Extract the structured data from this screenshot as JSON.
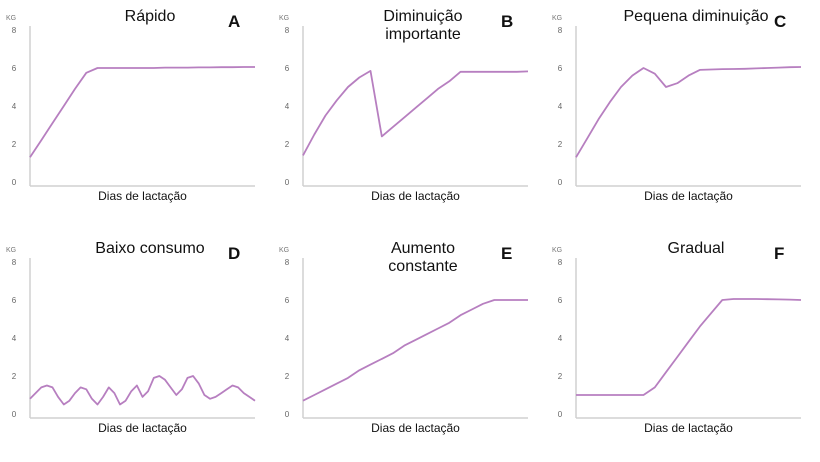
{
  "chart_data": [
    {
      "type": "line",
      "title": [
        "Rápido"
      ],
      "label": "A",
      "ylabel": "KG",
      "xlabel": "Dias de lactação",
      "ylim": [
        0,
        8
      ],
      "yticks": [
        0,
        2,
        4,
        6,
        8
      ],
      "color": "#b77fc0",
      "values": [
        1.3,
        2.2,
        3.1,
        4.0,
        4.9,
        5.75,
        6.0,
        6.0,
        6.0,
        6.0,
        6.0,
        6.0,
        6.02,
        6.02,
        6.02,
        6.03,
        6.03,
        6.04,
        6.04,
        6.05,
        6.05
      ]
    },
    {
      "type": "line",
      "title": [
        "Diminuição",
        "importante"
      ],
      "label": "B",
      "ylabel": "KG",
      "xlabel": "Dias de lactação",
      "ylim": [
        0,
        8
      ],
      "yticks": [
        0,
        2,
        4,
        6,
        8
      ],
      "color": "#b77fc0",
      "values": [
        1.4,
        2.5,
        3.5,
        4.3,
        5.0,
        5.5,
        5.85,
        2.4,
        2.9,
        3.4,
        3.9,
        4.4,
        4.9,
        5.3,
        5.8,
        5.8,
        5.8,
        5.8,
        5.8,
        5.8,
        5.82
      ]
    },
    {
      "type": "line",
      "title": [
        "Pequena diminuição"
      ],
      "label": "C",
      "ylabel": "KG",
      "xlabel": "Dias de lactação",
      "ylim": [
        0,
        8
      ],
      "yticks": [
        0,
        2,
        4,
        6,
        8
      ],
      "color": "#b77fc0",
      "values": [
        1.3,
        2.3,
        3.3,
        4.2,
        5.0,
        5.6,
        6.0,
        5.7,
        5.0,
        5.2,
        5.6,
        5.9,
        5.92,
        5.94,
        5.95,
        5.96,
        5.98,
        6.0,
        6.02,
        6.04,
        6.05
      ]
    },
    {
      "type": "line",
      "title": [
        "Baixo consumo"
      ],
      "label": "D",
      "ylabel": "KG",
      "xlabel": "Dias de lactação",
      "ylim": [
        0,
        8
      ],
      "yticks": [
        0,
        2,
        4,
        6,
        8
      ],
      "color": "#b77fc0",
      "values": [
        0.8,
        1.1,
        1.4,
        1.5,
        1.4,
        0.9,
        0.5,
        0.7,
        1.1,
        1.4,
        1.3,
        0.8,
        0.5,
        0.9,
        1.4,
        1.1,
        0.5,
        0.7,
        1.2,
        1.5,
        0.9,
        1.2,
        1.9,
        2.0,
        1.8,
        1.4,
        1.0,
        1.3,
        1.9,
        2.0,
        1.6,
        1.0,
        0.8,
        0.9,
        1.1,
        1.3,
        1.5,
        1.4,
        1.1,
        0.9,
        0.7
      ]
    },
    {
      "type": "line",
      "title": [
        "Aumento",
        "constante"
      ],
      "label": "E",
      "ylabel": "KG",
      "xlabel": "Dias de lactação",
      "ylim": [
        0,
        8
      ],
      "yticks": [
        0,
        2,
        4,
        6,
        8
      ],
      "color": "#b77fc0",
      "values": [
        0.7,
        1.0,
        1.3,
        1.6,
        1.9,
        2.3,
        2.6,
        2.9,
        3.2,
        3.6,
        3.9,
        4.2,
        4.5,
        4.8,
        5.2,
        5.5,
        5.8,
        6.0,
        6.0,
        6.0,
        6.0
      ]
    },
    {
      "type": "line",
      "title": [
        "Gradual"
      ],
      "label": "F",
      "ylabel": "KG",
      "xlabel": "Dias de lactação",
      "ylim": [
        0,
        8
      ],
      "yticks": [
        0,
        2,
        4,
        6,
        8
      ],
      "color": "#b77fc0",
      "values": [
        1.0,
        1.0,
        1.0,
        1.0,
        1.0,
        1.0,
        1.0,
        1.4,
        2.2,
        3.0,
        3.8,
        4.6,
        5.3,
        6.0,
        6.05,
        6.05,
        6.05,
        6.04,
        6.03,
        6.02,
        6.0
      ]
    }
  ]
}
